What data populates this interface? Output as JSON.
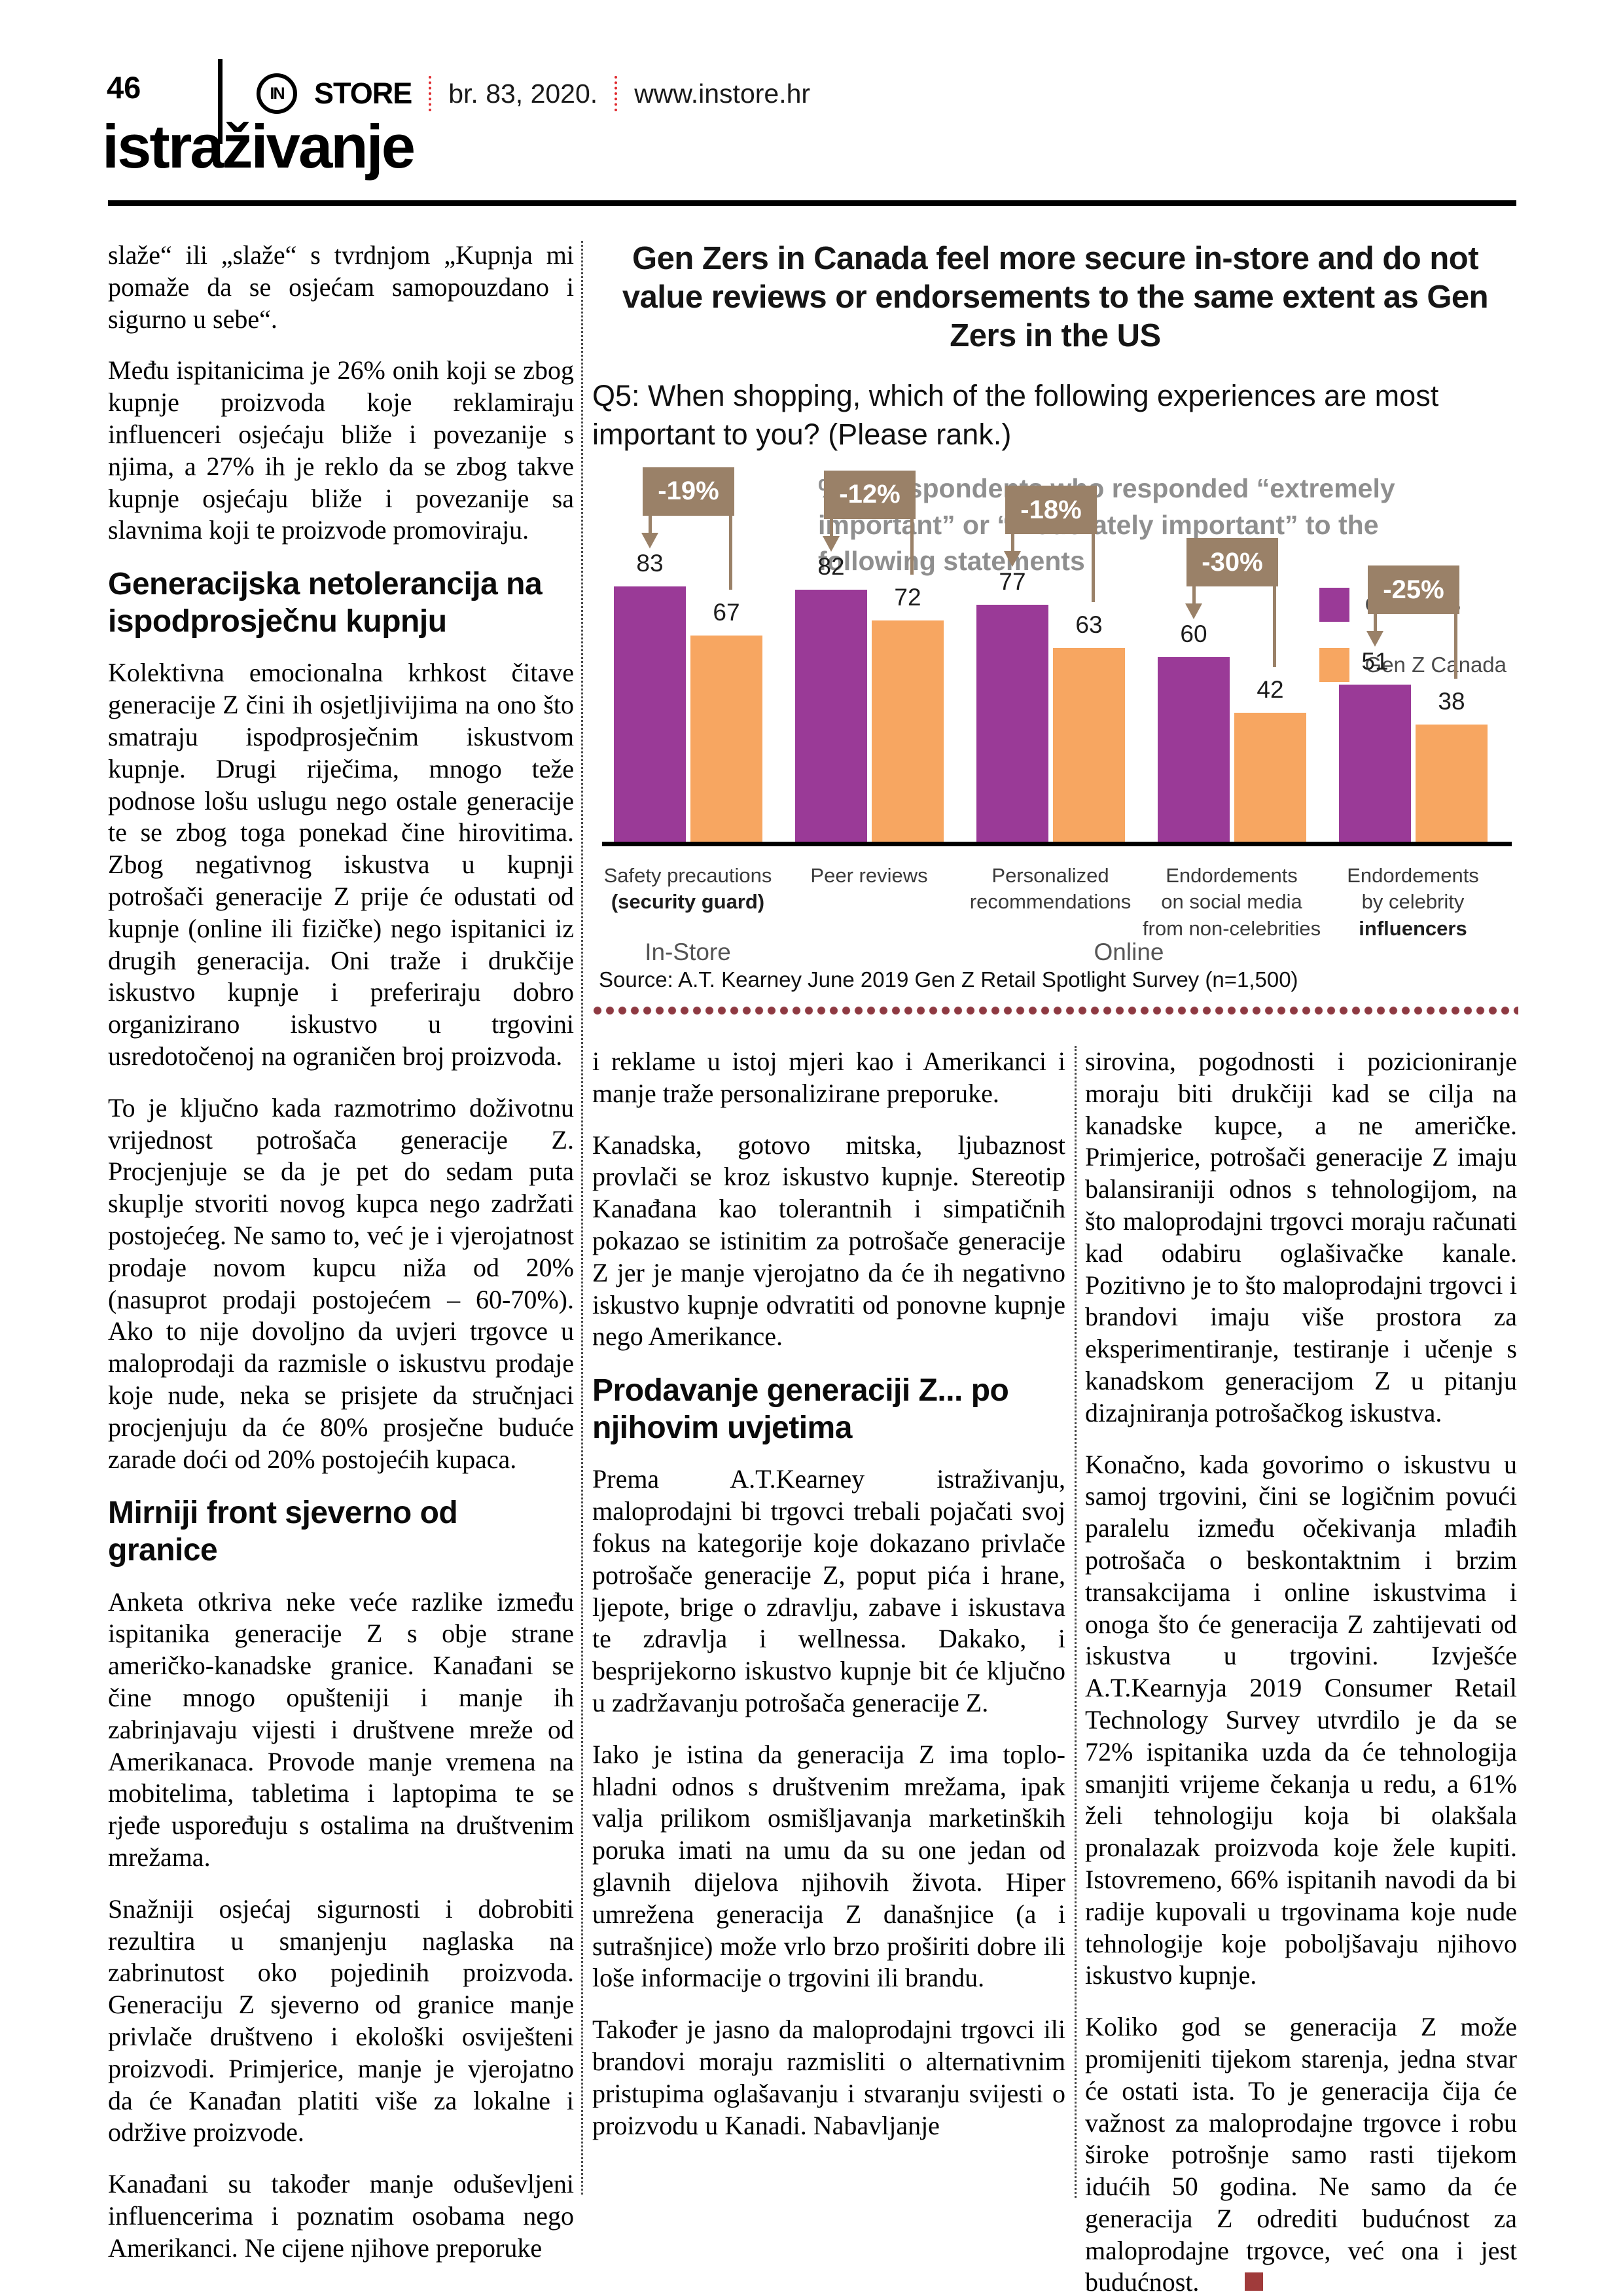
{
  "header": {
    "page_number": "46",
    "logo_monogram": "IN",
    "brand": "STORE",
    "issue": "br. 83, 2020.",
    "site": "www.instore.hr",
    "section": "istraživanje"
  },
  "left_column": {
    "blocks": [
      {
        "t": "p",
        "text": "slaže“ ili „slaže“ s tvrdnjom „Kupnja mi pomaže da se osjećam samopouzdano i sigurno u sebe“."
      },
      {
        "t": "p",
        "text": "Među ispitanicima je 26% onih koji se zbog kupnje proizvoda koje reklamiraju influenceri osjećaju bliže i povezanije s njima, a 27% ih je reklo da se zbog takve kupnje osjećaju bliže i povezanije sa slavnima koji te proizvode promoviraju."
      },
      {
        "t": "h",
        "text": "Generacijska netolerancija na ispodprosječnu kupnju"
      },
      {
        "t": "p",
        "text": "Kolektivna emocionalna krhkost čitave generacije Z čini ih osjetljivijima na ono što smatraju ispodprosječnim iskustvom kupnje. Drugi riječima, mnogo teže podnose lošu uslugu nego ostale generacije te se zbog toga ponekad čine hirovitima. Zbog negativnog iskustva u kupnji potrošači generacije Z prije će odustati od kupnje (online ili fizičke) nego ispitanici iz drugih generacija. Oni traže i drukčije iskustvo kupnje i preferiraju dobro organizirano iskustvo u trgovini usredotočenoj na ograničen broj proizvoda."
      },
      {
        "t": "p",
        "text": "To je ključno kada razmotrimo doživotnu vrijednost potrošača generacije Z. Procjenjuje se da je pet do sedam puta skuplje stvoriti novog kupca nego zadržati postojećeg. Ne samo to, već je i vjerojatnost prodaje novom kupcu niža od 20% (nasuprot prodaji postojećem – 60-70%). Ako to nije dovoljno da uvjeri trgovce u maloprodaji da razmisle o iskustvu prodaje koje nude, neka se prisjete da stručnjaci procjenjuju da će 80% prosječne buduće zarade doći od 20% postojećih kupaca."
      },
      {
        "t": "h",
        "text": "Mirniji front sjeverno od granice"
      },
      {
        "t": "p",
        "text": "Anketa otkriva neke veće razlike između ispitanika generacije Z s obje strane američko-kanadske granice. Kanađani se čine mnogo opušteniji i manje ih zabrinjavaju vijesti i društvene mreže od Amerikanaca. Provode manje vremena na mobitelima, tabletima i laptopima te se rjeđe uspoređuju s ostalima na društvenim mrežama."
      },
      {
        "t": "p",
        "text": "Snažniji osjećaj sigurnosti i dobrobiti rezultira u smanjenju naglaska na zabrinutost oko pojedinih proizvoda. Generaciju Z sjeverno od granice manje privlače društveno i ekološki osviješteni proizvodi. Primjerice, manje je vjerojatno da će Kanađan platiti više za lokalne i održive proizvode."
      },
      {
        "t": "p",
        "text": "Kanađani su također manje oduševljeni influencerima i poznatim osobama nego Amerikanci. Ne cijene njihove preporuke"
      }
    ]
  },
  "middle_column": {
    "blocks": [
      {
        "t": "p",
        "text": "i reklame u istoj mjeri kao i Amerikanci i manje traže personalizirane preporuke."
      },
      {
        "t": "p",
        "text": "Kanadska, gotovo mitska, ljubaznost provlači se kroz iskustvo kupnje. Stereotip Kanađana kao tolerantnih i simpatičnih pokazao se istinitim za potrošače generacije Z jer je manje vjerojatno da će ih negativno iskustvo kupnje odvratiti od ponovne kupnje nego Amerikance."
      },
      {
        "t": "h",
        "text": "Prodavanje generaciji Z... po njihovim uvjetima"
      },
      {
        "t": "p",
        "text": "Prema A.T.Kearney istraživanju, maloprodajni bi trgovci trebali pojačati svoj fokus na kategorije koje dokazano privlače potrošače generacije Z, poput pića i hrane, ljepote, brige o zdravlju, zabave i iskustava te zdravlja i wellnessa. Dakako, i besprijekorno iskustvo kupnje bit će ključno u zadržavanju potrošača generacije Z."
      },
      {
        "t": "p",
        "text": "Iako je istina da generacija Z ima toplo-hladni odnos s društvenim mrežama, ipak valja prilikom osmišljavanja marketinških poruka imati na umu da su one jedan od glavnih dijelova njihovih života. Hiper umrežena generacija Z današnjice (a i sutrašnjice) može vrlo brzo proširiti dobre ili loše informacije o trgovini ili brandu."
      },
      {
        "t": "p",
        "text": "Također je jasno da maloprodajni trgovci ili brandovi moraju razmisliti o alternativnim pristupima oglašavanju i stvaranju svijesti o proizvodu u Kanadi. Nabavljanje"
      }
    ]
  },
  "right_column": {
    "blocks": [
      {
        "t": "p",
        "text": "sirovina, pogodnosti i pozicioniranje moraju biti drukčiji kad se cilja na kanadske kupce, a ne američke. Primjerice, potrošači generacije Z imaju balansiraniji odnos s tehnologijom, na što maloprodajni trgovci moraju računati kad odabiru oglašivačke kanale. Pozitivno je to što maloprodajni trgovci i brandovi imaju više prostora za eksperimentiranje, testiranje i učenje s kanadskom generacijom Z u pitanju dizajniranja potrošačkog iskustva."
      },
      {
        "t": "p",
        "text": "Konačno, kada govorimo o iskustvu u samoj trgovini, čini se logičnim povući paralelu između očekivanja mlađih potrošača o beskontaktnim i brzim transakcijama i online iskustvima i onoga što će generacija Z zahtijevati od iskustva u trgovini. Izvješće A.T.Kearnyja 2019 Consumer Retail Technology Survey utvrdilo je da se 72% ispitanika uzda da će tehnologija smanjiti vrijeme čekanja u redu, a 61% želi tehnologiju koja bi olakšala pronalazak proizvoda koje žele kupiti. Istovremeno, 66% ispitanih navodi da bi radije kupovali u trgovinama koje nude tehnologije koje poboljšavaju njihovo iskustvo kupnje."
      },
      {
        "t": "p",
        "text": "Koliko god se generacija Z može promijeniti tijekom starenja, jedna stvar će ostati ista. To je generacija čija će važnost za maloprodajne trgovce i robu široke potrošnje samo rasti tijekom idućih 50 godina. Ne samo da će generacija Z odrediti budućnost za maloprodajne trgovce, već ona i jest budućnost."
      }
    ]
  },
  "chart_data": {
    "type": "bar",
    "title": "Gen Zers in Canada feel more secure in-store and do not value reviews or endorsements to the same extent as Gen Zers in the US",
    "question": "Q5: When shopping, which of the following experiences are most important to you? (Please rank.)",
    "subtitle": "% of respondents who responded “extremely important” or “moderately important” to the following statements",
    "categories": [
      {
        "lines": [
          {
            "text": "Safety precautions",
            "bold": false
          },
          {
            "text": "(security guard)",
            "bold": true
          }
        ]
      },
      {
        "lines": [
          {
            "text": "Peer reviews",
            "bold": false
          }
        ]
      },
      {
        "lines": [
          {
            "text": "Personalized",
            "bold": false
          },
          {
            "text": "recommendations",
            "bold": false
          }
        ]
      },
      {
        "lines": [
          {
            "text": "Endordements",
            "bold": false
          },
          {
            "text": "on social media",
            "bold": false
          },
          {
            "text": "from non-celebrities",
            "bold": false
          }
        ]
      },
      {
        "lines": [
          {
            "text": "Endordements",
            "bold": false
          },
          {
            "text": "by celebrity",
            "bold": false
          },
          {
            "text": "influencers",
            "bold": true
          }
        ]
      }
    ],
    "series": [
      {
        "name": "Gen Z US",
        "color": "#9a3a97",
        "values": [
          83,
          82,
          77,
          60,
          51
        ]
      },
      {
        "name": "Gen Z Canada",
        "color": "#f7a661",
        "values": [
          67,
          72,
          63,
          42,
          38
        ]
      }
    ],
    "deltas": [
      "-19%",
      "-12%",
      "-18%",
      "-30%",
      "-25%"
    ],
    "group_labels": [
      "In-Store",
      "Online"
    ],
    "source": "Source: A.T. Kearney June 2019 Gen Z Retail Spotlight Survey (n=1,500)",
    "ylim": [
      0,
      100
    ],
    "grid": false,
    "legend_position": "top-right"
  }
}
